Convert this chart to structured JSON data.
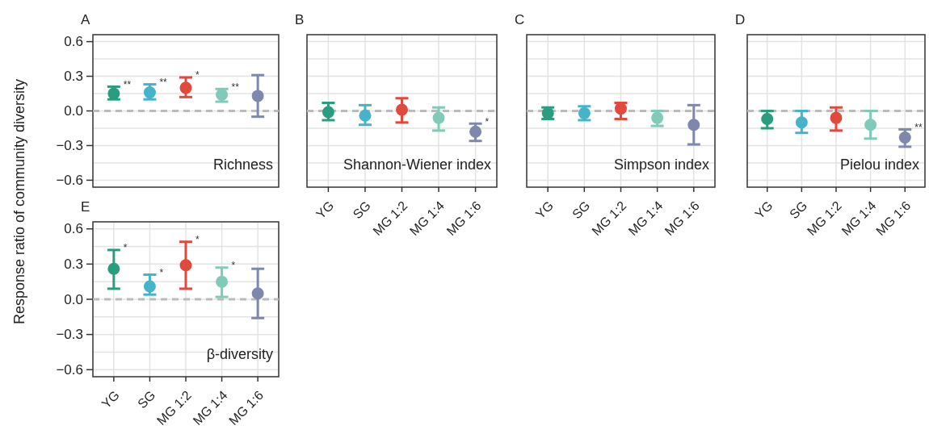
{
  "chart_data": [
    {
      "type": "scatter",
      "title": "A",
      "ylabel": "Response ratio of community diversity",
      "categories": [
        "YG",
        "SG",
        "MG 1:2",
        "MG 1:4",
        "MG 1:6"
      ],
      "values": [
        0.15,
        0.16,
        0.2,
        0.14,
        0.13
      ],
      "colors": [
        "#2a9d80",
        "#45b3c9",
        "#e04a3c",
        "#7fcab8",
        "#7e88ae"
      ],
      "errors": [
        [
          0.1,
          0.21
        ],
        [
          0.1,
          0.23
        ],
        [
          0.12,
          0.29
        ],
        [
          0.08,
          0.19
        ],
        [
          -0.05,
          0.31
        ]
      ],
      "ylim": [
        -0.66,
        0.66
      ],
      "yticks": [
        {
          "value": -0.6,
          "label": "−0.6"
        },
        {
          "value": -0.3,
          "label": "−0.3"
        },
        {
          "value": 0,
          "label": "0.0"
        },
        {
          "value": 0.3,
          "label": "0.3"
        },
        {
          "value": 0.6,
          "label": "0.6"
        }
      ],
      "grid": true,
      "marker": "circle",
      "tick_labels": "y",
      "ref_lines": [
        {
          "axis": "y",
          "value": 0,
          "color": "#bbbbbb",
          "line_style": "dashed"
        }
      ],
      "annotations": [
        "Richness",
        {
          "text": "**",
          "x": "YG",
          "y": 0.21
        },
        {
          "text": "**",
          "x": "SG",
          "y": 0.23
        },
        {
          "text": "*",
          "x": "MG 1:2",
          "y": 0.29
        },
        {
          "text": "**",
          "x": "MG 1:4",
          "y": 0.19
        }
      ]
    },
    {
      "type": "scatter",
      "title": "B",
      "categories": [
        "YG",
        "SG",
        "MG 1:2",
        "MG 1:4",
        "MG 1:6"
      ],
      "values": [
        -0.01,
        -0.04,
        0.01,
        -0.06,
        -0.18
      ],
      "colors": [
        "#2a9d80",
        "#45b3c9",
        "#e04a3c",
        "#7fcab8",
        "#7e88ae"
      ],
      "errors": [
        [
          -0.08,
          0.07
        ],
        [
          -0.12,
          0.05
        ],
        [
          -0.1,
          0.11
        ],
        [
          -0.17,
          0.03
        ],
        [
          -0.26,
          -0.11
        ]
      ],
      "ylim": [
        -0.66,
        0.66
      ],
      "yticks": [
        {
          "value": -0.6,
          "label": null
        },
        {
          "value": -0.3,
          "label": null
        },
        {
          "value": 0,
          "label": null
        },
        {
          "value": 0.3,
          "label": null
        },
        {
          "value": 0.6,
          "label": null
        }
      ],
      "grid": true,
      "marker": "circle",
      "tick_labels": "x",
      "ref_lines": [
        {
          "axis": "y",
          "value": 0,
          "color": "#bbbbbb",
          "line_style": "dashed"
        }
      ],
      "annotations": [
        "Shannon-Wiener index",
        {
          "text": "*",
          "x": "MG 1:6",
          "y": -0.11
        }
      ]
    },
    {
      "type": "scatter",
      "title": "C",
      "categories": [
        "YG",
        "SG",
        "MG 1:2",
        "MG 1:4",
        "MG 1:6"
      ],
      "values": [
        -0.02,
        -0.02,
        0.02,
        -0.06,
        -0.12
      ],
      "colors": [
        "#2a9d80",
        "#45b3c9",
        "#e04a3c",
        "#7fcab8",
        "#7e88ae"
      ],
      "errors": [
        [
          -0.07,
          0.03
        ],
        [
          -0.08,
          0.04
        ],
        [
          -0.07,
          0.07
        ],
        [
          -0.13,
          0.0
        ],
        [
          -0.29,
          0.05
        ]
      ],
      "ylim": [
        -0.66,
        0.66
      ],
      "yticks": [
        {
          "value": -0.6,
          "label": null
        },
        {
          "value": -0.3,
          "label": null
        },
        {
          "value": 0,
          "label": null
        },
        {
          "value": 0.3,
          "label": null
        },
        {
          "value": 0.6,
          "label": null
        }
      ],
      "grid": true,
      "marker": "circle",
      "tick_labels": "x",
      "ref_lines": [
        {
          "axis": "y",
          "value": 0,
          "color": "#bbbbbb",
          "line_style": "dashed"
        }
      ],
      "annotations": [
        "Simpson index"
      ]
    },
    {
      "type": "scatter",
      "title": "D",
      "categories": [
        "YG",
        "SG",
        "MG 1:2",
        "MG 1:4",
        "MG 1:6"
      ],
      "values": [
        -0.07,
        -0.1,
        -0.06,
        -0.12,
        -0.23
      ],
      "colors": [
        "#2a9d80",
        "#45b3c9",
        "#e04a3c",
        "#7fcab8",
        "#7e88ae"
      ],
      "errors": [
        [
          -0.15,
          0.0
        ],
        [
          -0.19,
          0.0
        ],
        [
          -0.17,
          0.03
        ],
        [
          -0.24,
          0.0
        ],
        [
          -0.31,
          -0.16
        ]
      ],
      "ylim": [
        -0.66,
        0.66
      ],
      "yticks": [
        {
          "value": -0.6,
          "label": null
        },
        {
          "value": -0.3,
          "label": null
        },
        {
          "value": 0,
          "label": null
        },
        {
          "value": 0.3,
          "label": null
        },
        {
          "value": 0.6,
          "label": null
        }
      ],
      "grid": true,
      "marker": "circle",
      "tick_labels": "x",
      "ref_lines": [
        {
          "axis": "y",
          "value": 0,
          "color": "#bbbbbb",
          "line_style": "dashed"
        }
      ],
      "annotations": [
        "Pielou index",
        {
          "text": "**",
          "x": "MG 1:6",
          "y": -0.16
        }
      ]
    },
    {
      "type": "scatter",
      "title": "E",
      "categories": [
        "YG",
        "SG",
        "MG 1:2",
        "MG 1:4",
        "MG 1:6"
      ],
      "values": [
        0.26,
        0.11,
        0.29,
        0.15,
        0.05
      ],
      "colors": [
        "#2a9d80",
        "#45b3c9",
        "#e04a3c",
        "#7fcab8",
        "#7e88ae"
      ],
      "errors": [
        [
          0.09,
          0.42
        ],
        [
          0.04,
          0.21
        ],
        [
          0.09,
          0.49
        ],
        [
          0.02,
          0.27
        ],
        [
          -0.16,
          0.26
        ]
      ],
      "ylim": [
        -0.66,
        0.66
      ],
      "yticks": [
        {
          "value": -0.6,
          "label": "−0.6"
        },
        {
          "value": -0.3,
          "label": "−0.3"
        },
        {
          "value": 0,
          "label": "0.0"
        },
        {
          "value": 0.3,
          "label": "0.3"
        },
        {
          "value": 0.6,
          "label": "0.6"
        }
      ],
      "grid": true,
      "marker": "circle",
      "ref_lines": [
        {
          "axis": "y",
          "value": 0,
          "color": "#bbbbbb",
          "line_style": "dashed"
        }
      ],
      "annotations": [
        "β-diversity",
        {
          "text": "*",
          "x": "YG",
          "y": 0.42
        },
        {
          "text": "*",
          "x": "SG",
          "y": 0.21
        },
        {
          "text": "*",
          "x": "MG 1:2",
          "y": 0.49
        },
        {
          "text": "*",
          "x": "MG 1:4",
          "y": 0.27
        }
      ]
    }
  ]
}
